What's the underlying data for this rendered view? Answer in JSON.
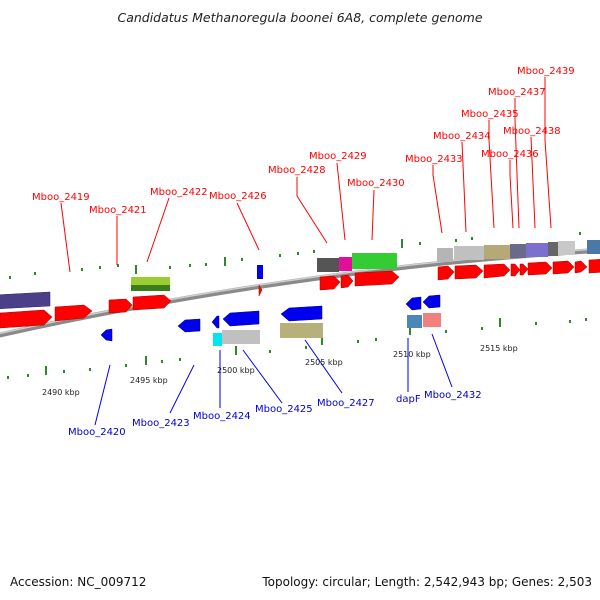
{
  "title": "Candidatus Methanoregula boonei 6A8, complete genome",
  "footer": {
    "accession": "Accession: NC_009712",
    "summary": "Topology: circular; Length: 2,542,943 bp; Genes: 2,503"
  },
  "ticks": [
    "2490 kbp",
    "2495 kbp",
    "2500 kbp",
    "2505 kbp",
    "2510 kbp",
    "2515 kbp"
  ],
  "labels_top": [
    "Mboo_2419",
    "Mboo_2421",
    "Mboo_2422",
    "Mboo_2426",
    "Mboo_2428",
    "Mboo_2429",
    "Mboo_2430",
    "Mboo_2433",
    "Mboo_2434",
    "Mboo_2435",
    "Mboo_2436",
    "Mboo_2437",
    "Mboo_2438",
    "Mboo_2439"
  ],
  "labels_bottom": [
    "Mboo_2420",
    "Mboo_2423",
    "Mboo_2424",
    "Mboo_2425",
    "Mboo_2427",
    "dapF",
    "Mboo_2432"
  ],
  "colors": {
    "forward_strand": "#ff0000",
    "reverse_strand": "#0000ee",
    "backbone": "#8a8a8a",
    "tick_dots": "#2a8a2a"
  }
}
